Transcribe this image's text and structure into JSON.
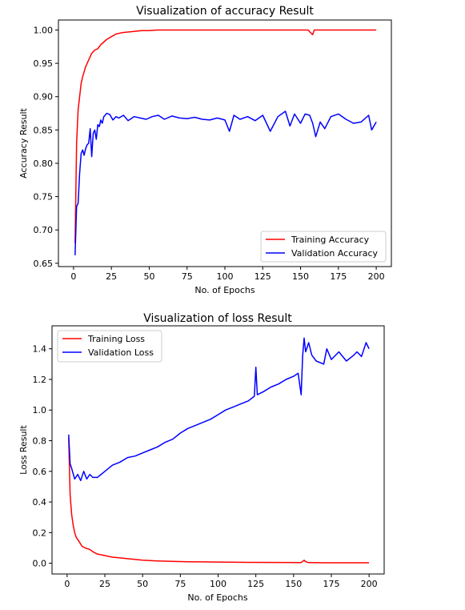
{
  "chart_data": [
    {
      "type": "line",
      "title": "Visualization of accuracy Result",
      "xlabel": "No. of Epochs",
      "ylabel": "Accuracy Result",
      "xlim": [
        -10,
        210
      ],
      "ylim": [
        0.645,
        1.015
      ],
      "xticks": [
        0,
        25,
        50,
        75,
        100,
        125,
        150,
        175,
        200
      ],
      "yticks": [
        0.65,
        0.7,
        0.75,
        0.8,
        0.85,
        0.9,
        0.95,
        1.0
      ],
      "ytick_labels": [
        "0.65",
        "0.70",
        "0.75",
        "0.80",
        "0.85",
        "0.90",
        "0.95",
        "1.00"
      ],
      "legend_position": "lower-right",
      "series": [
        {
          "name": "Training Accuracy",
          "color": "#ff0000",
          "x": [
            1,
            2,
            3,
            4,
            5,
            6,
            8,
            10,
            12,
            14,
            16,
            18,
            20,
            22,
            25,
            28,
            32,
            36,
            40,
            45,
            50,
            55,
            60,
            70,
            80,
            100,
            120,
            140,
            155,
            157,
            158,
            159,
            170,
            185,
            200
          ],
          "y": [
            0.68,
            0.83,
            0.88,
            0.9,
            0.92,
            0.93,
            0.945,
            0.955,
            0.965,
            0.97,
            0.972,
            0.978,
            0.982,
            0.986,
            0.99,
            0.994,
            0.996,
            0.997,
            0.998,
            0.999,
            0.999,
            1.0,
            1.0,
            1.0,
            1.0,
            1.0,
            1.0,
            1.0,
            1.0,
            0.995,
            0.993,
            1.0,
            1.0,
            1.0,
            1.0
          ]
        },
        {
          "name": "Validation Accuracy",
          "color": "#0000ff",
          "x": [
            1,
            2,
            3,
            4,
            5,
            6,
            7,
            8,
            9,
            10,
            11,
            12,
            13,
            14,
            15,
            16,
            17,
            18,
            19,
            20,
            22,
            24,
            26,
            28,
            30,
            33,
            36,
            40,
            44,
            48,
            52,
            56,
            60,
            65,
            70,
            75,
            80,
            85,
            90,
            95,
            100,
            103,
            106,
            110,
            115,
            120,
            125,
            130,
            135,
            140,
            143,
            146,
            150,
            153,
            156,
            158,
            160,
            163,
            166,
            170,
            175,
            180,
            185,
            190,
            195,
            197,
            200
          ],
          "y": [
            0.662,
            0.735,
            0.74,
            0.785,
            0.815,
            0.82,
            0.812,
            0.822,
            0.828,
            0.83,
            0.852,
            0.81,
            0.845,
            0.85,
            0.836,
            0.858,
            0.855,
            0.865,
            0.86,
            0.87,
            0.875,
            0.873,
            0.865,
            0.87,
            0.868,
            0.872,
            0.864,
            0.87,
            0.868,
            0.866,
            0.87,
            0.872,
            0.866,
            0.871,
            0.868,
            0.867,
            0.869,
            0.866,
            0.865,
            0.868,
            0.865,
            0.848,
            0.872,
            0.866,
            0.87,
            0.864,
            0.872,
            0.848,
            0.87,
            0.878,
            0.856,
            0.874,
            0.86,
            0.874,
            0.872,
            0.86,
            0.84,
            0.862,
            0.852,
            0.87,
            0.874,
            0.866,
            0.86,
            0.862,
            0.872,
            0.85,
            0.862
          ]
        }
      ]
    },
    {
      "type": "line",
      "title": "Visualization of loss Result",
      "xlabel": "No. of Epochs",
      "ylabel": "Loss Result",
      "xlim": [
        -10,
        210
      ],
      "ylim": [
        -0.07,
        1.55
      ],
      "xticks": [
        0,
        25,
        50,
        75,
        100,
        125,
        150,
        175,
        200
      ],
      "yticks": [
        0.0,
        0.2,
        0.4,
        0.6,
        0.8,
        1.0,
        1.2,
        1.4
      ],
      "ytick_labels": [
        "0.0",
        "0.2",
        "0.4",
        "0.6",
        "0.8",
        "1.0",
        "1.2",
        "1.4"
      ],
      "legend_position": "upper-left",
      "series": [
        {
          "name": "Training Loss",
          "color": "#ff0000",
          "x": [
            1,
            2,
            3,
            4,
            5,
            6,
            8,
            10,
            12,
            15,
            18,
            20,
            25,
            30,
            35,
            40,
            50,
            60,
            70,
            80,
            100,
            120,
            140,
            155,
            157,
            158,
            160,
            170,
            185,
            200
          ],
          "y": [
            0.82,
            0.45,
            0.32,
            0.25,
            0.2,
            0.17,
            0.14,
            0.11,
            0.1,
            0.09,
            0.07,
            0.06,
            0.05,
            0.04,
            0.035,
            0.03,
            0.02,
            0.015,
            0.012,
            0.01,
            0.008,
            0.006,
            0.005,
            0.004,
            0.02,
            0.01,
            0.004,
            0.003,
            0.003,
            0.003
          ]
        },
        {
          "name": "Validation Loss",
          "color": "#0000ff",
          "x": [
            1,
            2,
            3,
            5,
            7,
            9,
            11,
            13,
            15,
            17,
            20,
            25,
            30,
            35,
            40,
            45,
            50,
            55,
            60,
            65,
            70,
            75,
            80,
            85,
            90,
            95,
            100,
            105,
            110,
            115,
            120,
            124,
            125,
            126,
            130,
            135,
            140,
            145,
            150,
            153,
            155,
            156,
            157,
            158,
            160,
            162,
            165,
            170,
            172,
            175,
            180,
            185,
            190,
            192,
            195,
            198,
            200
          ],
          "y": [
            0.84,
            0.65,
            0.62,
            0.55,
            0.58,
            0.54,
            0.6,
            0.55,
            0.58,
            0.56,
            0.56,
            0.6,
            0.64,
            0.66,
            0.69,
            0.7,
            0.72,
            0.74,
            0.76,
            0.79,
            0.81,
            0.85,
            0.88,
            0.9,
            0.92,
            0.94,
            0.97,
            1.0,
            1.02,
            1.04,
            1.06,
            1.09,
            1.28,
            1.1,
            1.12,
            1.15,
            1.17,
            1.2,
            1.22,
            1.24,
            1.1,
            1.35,
            1.47,
            1.38,
            1.44,
            1.36,
            1.32,
            1.3,
            1.4,
            1.33,
            1.38,
            1.32,
            1.36,
            1.38,
            1.35,
            1.44,
            1.4
          ]
        }
      ]
    }
  ]
}
